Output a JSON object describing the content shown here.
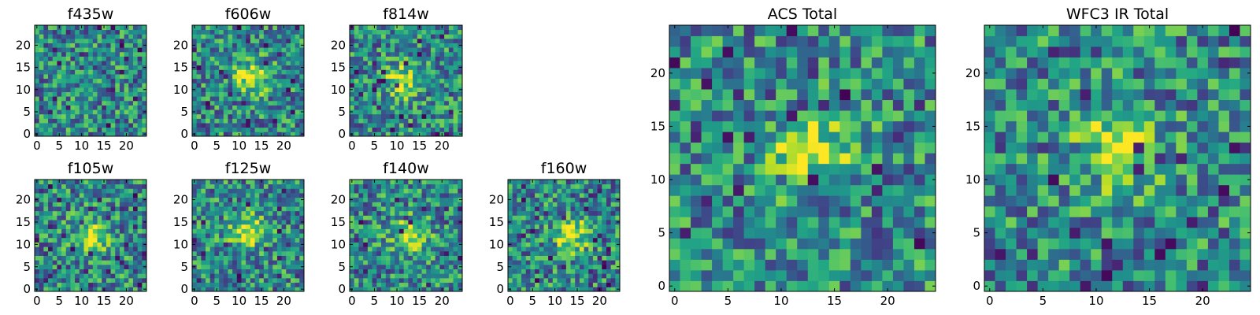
{
  "chart_data": [
    {
      "type": "heatmap",
      "title": "f435w",
      "colormap": "viridis",
      "grid": false,
      "x_range": [
        0,
        24
      ],
      "y_range": [
        0,
        24
      ],
      "xticks": [
        0,
        5,
        10,
        15,
        20
      ],
      "yticks": [
        0,
        5,
        10,
        15,
        20
      ],
      "grid_size": [
        25,
        25
      ],
      "hotspot": null
    },
    {
      "type": "heatmap",
      "title": "f606w",
      "colormap": "viridis",
      "grid": false,
      "x_range": [
        0,
        24
      ],
      "y_range": [
        0,
        24
      ],
      "xticks": [
        0,
        5,
        10,
        15,
        20
      ],
      "yticks": [
        0,
        5,
        10,
        15,
        20
      ],
      "grid_size": [
        25,
        25
      ],
      "hotspot": [
        13,
        13
      ]
    },
    {
      "type": "heatmap",
      "title": "f814w",
      "colormap": "viridis",
      "grid": false,
      "x_range": [
        0,
        24
      ],
      "y_range": [
        0,
        24
      ],
      "xticks": [
        0,
        5,
        10,
        15,
        20
      ],
      "yticks": [
        0,
        5,
        10,
        15,
        20
      ],
      "grid_size": [
        25,
        25
      ],
      "hotspot": [
        11,
        12
      ]
    },
    {
      "type": "heatmap",
      "title": "f105w",
      "colormap": "viridis",
      "grid": false,
      "x_range": [
        0,
        24
      ],
      "y_range": [
        0,
        24
      ],
      "xticks": [
        0,
        5,
        10,
        15,
        20
      ],
      "yticks": [
        0,
        5,
        10,
        15,
        20
      ],
      "grid_size": [
        25,
        25
      ],
      "hotspot": [
        12,
        12
      ]
    },
    {
      "type": "heatmap",
      "title": "f125w",
      "colormap": "viridis",
      "grid": false,
      "x_range": [
        0,
        24
      ],
      "y_range": [
        0,
        24
      ],
      "xticks": [
        0,
        5,
        10,
        15,
        20
      ],
      "yticks": [
        0,
        5,
        10,
        15,
        20
      ],
      "grid_size": [
        25,
        25
      ],
      "hotspot": [
        12,
        13
      ]
    },
    {
      "type": "heatmap",
      "title": "f140w",
      "colormap": "viridis",
      "grid": false,
      "x_range": [
        0,
        24
      ],
      "y_range": [
        0,
        24
      ],
      "xticks": [
        0,
        5,
        10,
        15,
        20
      ],
      "yticks": [
        0,
        5,
        10,
        15,
        20
      ],
      "grid_size": [
        25,
        25
      ],
      "hotspot": [
        13,
        12
      ]
    },
    {
      "type": "heatmap",
      "title": "f160w",
      "colormap": "viridis",
      "grid": false,
      "x_range": [
        0,
        24
      ],
      "y_range": [
        0,
        24
      ],
      "xticks": [
        0,
        5,
        10,
        15,
        20
      ],
      "yticks": [
        0,
        5,
        10,
        15,
        20
      ],
      "grid_size": [
        25,
        25
      ],
      "hotspot": [
        14,
        12
      ]
    },
    {
      "type": "heatmap",
      "title": "ACS Total",
      "colormap": "viridis",
      "grid": false,
      "x_range": [
        0,
        24
      ],
      "y_range": [
        0,
        24
      ],
      "xticks": [
        0,
        5,
        10,
        15,
        20
      ],
      "yticks": [
        0,
        5,
        10,
        15,
        20
      ],
      "grid_size": [
        25,
        25
      ],
      "hotspot": [
        13,
        13
      ]
    },
    {
      "type": "heatmap",
      "title": "WFC3 IR Total",
      "colormap": "viridis",
      "grid": false,
      "x_range": [
        0,
        24
      ],
      "y_range": [
        0,
        24
      ],
      "xticks": [
        0,
        5,
        10,
        15,
        20
      ],
      "yticks": [
        0,
        5,
        10,
        15,
        20
      ],
      "grid_size": [
        25,
        25
      ],
      "hotspot": [
        12,
        13
      ]
    }
  ]
}
